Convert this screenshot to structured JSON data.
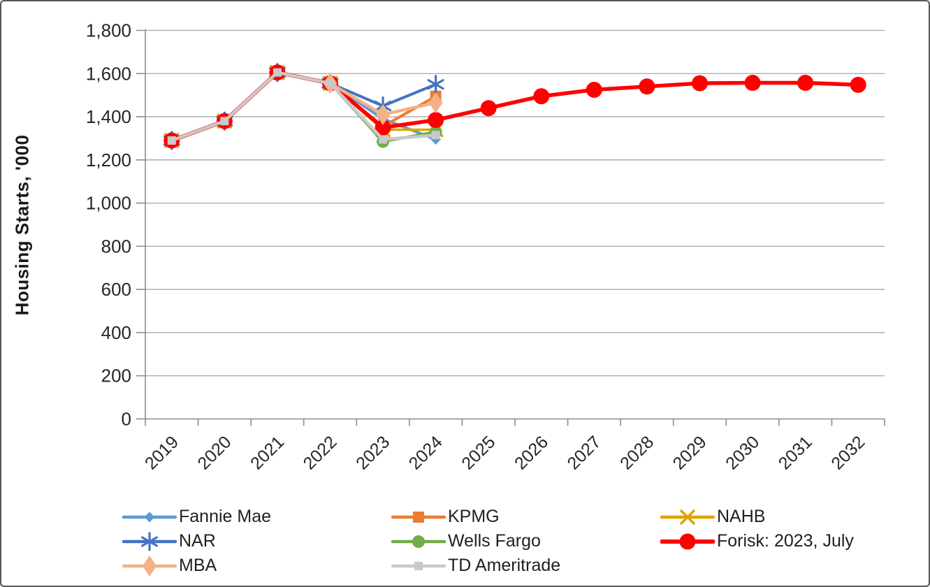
{
  "page": {
    "background": "#FFFFFF",
    "border_color": "#575757"
  },
  "chart_data": {
    "type": "line",
    "title": "",
    "xlabel": "",
    "ylabel": "Housing Starts, '000",
    "categories": [
      "2019",
      "2020",
      "2021",
      "2022",
      "2023",
      "2024",
      "2025",
      "2026",
      "2027",
      "2028",
      "2029",
      "2030",
      "2031",
      "2032"
    ],
    "y_axis": {
      "min": 0,
      "max": 1800,
      "tick_step": 200,
      "tick_labels": [
        "0",
        "200",
        "400",
        "600",
        "800",
        "1,000",
        "1,200",
        "1,400",
        "1,600",
        "1,800"
      ]
    },
    "grid": "horizontal",
    "legend_position": "bottom",
    "axis_color": "#8C8C8C",
    "gridline_color": "#A6A6A6",
    "text_color": "#262626",
    "series": [
      {
        "name": "Fannie Mae",
        "color": "#5B9BD5",
        "marker": "diamond",
        "line_width": 4,
        "values": [
          1290,
          1380,
          1605,
          1555,
          1390,
          1295,
          null,
          null,
          null,
          null,
          null,
          null,
          null,
          null
        ]
      },
      {
        "name": "KPMG",
        "color": "#ED7D31",
        "marker": "square",
        "line_width": 4,
        "values": [
          1290,
          1380,
          1605,
          1555,
          1355,
          1495,
          null,
          null,
          null,
          null,
          null,
          null,
          null,
          null
        ]
      },
      {
        "name": "NAHB",
        "color": "#E0A300",
        "marker": "x",
        "line_width": 3.5,
        "values": [
          1290,
          1380,
          1605,
          1555,
          1340,
          1340,
          null,
          null,
          null,
          null,
          null,
          null,
          null,
          null
        ]
      },
      {
        "name": "NAR",
        "color": "#4472C4",
        "marker": "asterisk",
        "line_width": 4,
        "values": [
          1290,
          1380,
          1605,
          1555,
          1450,
          1550,
          null,
          null,
          null,
          null,
          null,
          null,
          null,
          null
        ]
      },
      {
        "name": "Wells Fargo",
        "color": "#70AD47",
        "marker": "circle",
        "line_width": 4,
        "values": [
          1290,
          1380,
          1605,
          1555,
          1285,
          1330,
          null,
          null,
          null,
          null,
          null,
          null,
          null,
          null
        ]
      },
      {
        "name": "Forisk: 2023, July",
        "color": "#FF0000",
        "marker": "circle-large",
        "line_width": 5.5,
        "values": [
          1290,
          1380,
          1605,
          1555,
          1350,
          1385,
          1440,
          1495,
          1525,
          1540,
          1555,
          1557,
          1557,
          1548
        ]
      },
      {
        "name": "MBA",
        "color": "#F4B183",
        "marker": "diamond-large",
        "line_width": 4.5,
        "values": [
          null,
          null,
          null,
          1555,
          1410,
          1465,
          null,
          null,
          null,
          null,
          null,
          null,
          null,
          null
        ]
      },
      {
        "name": "TD Ameritrade",
        "color": "#C9C9C9",
        "marker": "square-small",
        "line_width": 4.5,
        "values": [
          1290,
          1380,
          1605,
          1555,
          1295,
          1315,
          null,
          null,
          null,
          null,
          null,
          null,
          null,
          null
        ]
      }
    ]
  }
}
